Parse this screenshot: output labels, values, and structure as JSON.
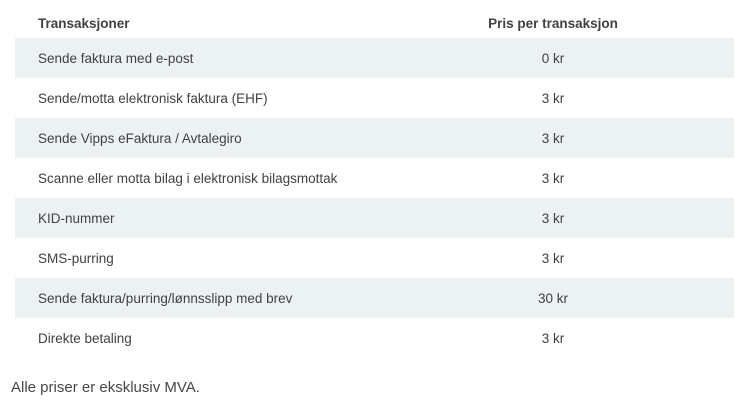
{
  "table": {
    "columns": [
      {
        "label": "Transaksjoner"
      },
      {
        "label": "Pris per transaksjon"
      }
    ],
    "rows": [
      {
        "label": "Sende faktura med e-post",
        "price": "0 kr"
      },
      {
        "label": "Sende/motta elektronisk faktura (EHF)",
        "price": "3 kr"
      },
      {
        "label": "Sende Vipps eFaktura / Avtalegiro",
        "price": "3 kr"
      },
      {
        "label": "Scanne eller motta bilag i elektronisk bilagsmottak",
        "price": "3 kr"
      },
      {
        "label": "KID-nummer",
        "price": "3 kr"
      },
      {
        "label": "SMS-purring",
        "price": "3 kr"
      },
      {
        "label": "Sende faktura/purring/lønnsslipp med brev",
        "price": "30 kr"
      },
      {
        "label": "Direkte betaling",
        "price": "3 kr"
      }
    ]
  },
  "footer": {
    "note": "Alle priser er eksklusiv MVA."
  },
  "colors": {
    "row_shaded": "#ecf2f2",
    "header_text": "#333537",
    "body_text": "#3f4245"
  }
}
